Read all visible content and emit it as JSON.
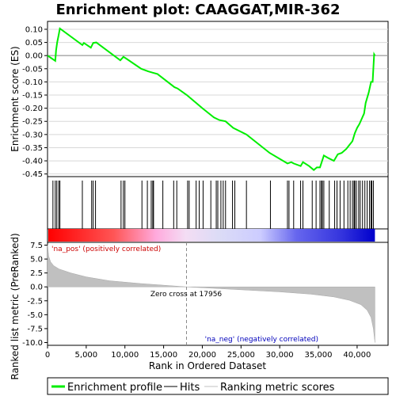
{
  "chart_data": {
    "type": "line",
    "title": "Enrichment plot: CAAGGAT,MIR-362",
    "es_panel": {
      "ylabel": "Enrichment score (ES)",
      "ylim": [
        -0.46,
        0.13
      ],
      "yticks": [
        0.1,
        0.05,
        0.0,
        -0.05,
        -0.1,
        -0.15,
        -0.2,
        -0.25,
        -0.3,
        -0.35,
        -0.4,
        -0.45
      ],
      "ytick_labels": [
        "0.10",
        "0.05",
        "0.00",
        "-0.05",
        "-0.10",
        "-0.15",
        "-0.20",
        "-0.25",
        "-0.30",
        "-0.35",
        "-0.40",
        "-0.45"
      ],
      "grid": true,
      "points": [
        [
          0,
          0.0
        ],
        [
          500,
          -0.01
        ],
        [
          1000,
          -0.02
        ],
        [
          1100,
          0.02
        ],
        [
          1250,
          0.05
        ],
        [
          1450,
          0.08
        ],
        [
          1600,
          0.103
        ],
        [
          4500,
          0.04
        ],
        [
          4700,
          0.048
        ],
        [
          5600,
          0.03
        ],
        [
          5900,
          0.048
        ],
        [
          6300,
          0.05
        ],
        [
          9400,
          -0.018
        ],
        [
          9800,
          -0.005
        ],
        [
          10100,
          -0.01
        ],
        [
          12100,
          -0.05
        ],
        [
          13000,
          -0.06
        ],
        [
          13600,
          -0.065
        ],
        [
          14200,
          -0.07
        ],
        [
          16400,
          -0.12
        ],
        [
          16800,
          -0.125
        ],
        [
          18000,
          -0.15
        ],
        [
          20000,
          -0.2
        ],
        [
          21500,
          -0.235
        ],
        [
          22200,
          -0.245
        ],
        [
          23000,
          -0.25
        ],
        [
          24000,
          -0.275
        ],
        [
          25700,
          -0.3
        ],
        [
          28700,
          -0.37
        ],
        [
          31000,
          -0.41
        ],
        [
          31500,
          -0.405
        ],
        [
          31800,
          -0.41
        ],
        [
          32700,
          -0.42
        ],
        [
          33000,
          -0.405
        ],
        [
          33800,
          -0.42
        ],
        [
          34400,
          -0.435
        ],
        [
          34800,
          -0.425
        ],
        [
          35200,
          -0.425
        ],
        [
          35700,
          -0.38
        ],
        [
          36300,
          -0.39
        ],
        [
          37000,
          -0.4
        ],
        [
          37500,
          -0.375
        ],
        [
          38000,
          -0.37
        ],
        [
          38600,
          -0.355
        ],
        [
          39000,
          -0.34
        ],
        [
          39400,
          -0.325
        ],
        [
          39700,
          -0.295
        ],
        [
          40000,
          -0.275
        ],
        [
          40300,
          -0.26
        ],
        [
          40600,
          -0.24
        ],
        [
          40900,
          -0.22
        ],
        [
          41100,
          -0.18
        ],
        [
          41500,
          -0.14
        ],
        [
          41800,
          -0.1
        ],
        [
          42000,
          -0.1
        ],
        [
          42200,
          0.005
        ],
        [
          42300,
          0.0
        ]
      ]
    },
    "hits_panel": {
      "hit_positions": [
        700,
        1000,
        1200,
        1450,
        1600,
        4500,
        5700,
        5900,
        6200,
        9500,
        9800,
        10000,
        12200,
        12900,
        13400,
        13600,
        13700,
        14900,
        16300,
        16700,
        18100,
        18300,
        19200,
        19600,
        20100,
        21100,
        21800,
        22000,
        22400,
        22700,
        23000,
        23900,
        24200,
        25700,
        28800,
        31000,
        31200,
        31800,
        32700,
        33000,
        34200,
        34700,
        35200,
        35400,
        35500,
        35700,
        36400,
        37100,
        37400,
        37800,
        38300,
        38800,
        39100,
        39400,
        39600,
        39700,
        39900,
        40200,
        40400,
        40700,
        41000,
        41300,
        41600,
        41800,
        41900,
        42100
      ]
    },
    "rank_panel": {
      "ylabel": "Ranked list metric (PreRanked)",
      "ylim": [
        -10.5,
        8.0
      ],
      "yticks": [
        7.5,
        5.0,
        2.5,
        0.0,
        -2.5,
        -5.0,
        -7.5,
        -10.0
      ],
      "ytick_labels": [
        "7.5",
        "5.0",
        "2.5",
        "0.0",
        "-2.5",
        "-5.0",
        "-7.5",
        "-10.0"
      ],
      "curve": [
        [
          0,
          7.6
        ],
        [
          150,
          5.5
        ],
        [
          400,
          4.5
        ],
        [
          800,
          3.8
        ],
        [
          1500,
          3.2
        ],
        [
          3000,
          2.5
        ],
        [
          5000,
          1.8
        ],
        [
          8000,
          1.1
        ],
        [
          12000,
          0.6
        ],
        [
          15000,
          0.3
        ],
        [
          17956,
          0.0
        ],
        [
          22000,
          -0.3
        ],
        [
          26000,
          -0.6
        ],
        [
          30000,
          -0.9
        ],
        [
          34000,
          -1.3
        ],
        [
          37000,
          -1.8
        ],
        [
          39000,
          -2.4
        ],
        [
          40500,
          -3.2
        ],
        [
          41300,
          -4.2
        ],
        [
          41800,
          -5.5
        ],
        [
          42100,
          -7.5
        ],
        [
          42300,
          -10.0
        ]
      ],
      "zero_cross_x": 17956,
      "zero_cross_label": "Zero cross at 17956",
      "pos_label": "'na_pos' (positively correlated)",
      "neg_label": "'na_neg' (negatively correlated)"
    },
    "xaxis": {
      "xlabel": "Rank in Ordered Dataset",
      "xlim": [
        0,
        44000
      ],
      "xticks": [
        0,
        5000,
        10000,
        15000,
        20000,
        25000,
        30000,
        35000,
        40000
      ],
      "xtick_labels": [
        "0",
        "5,000",
        "10,000",
        "15,000",
        "20,000",
        "25,000",
        "30,000",
        "35,000",
        "40,000"
      ],
      "data_end": 42300
    },
    "legend": {
      "placement": "bottom",
      "items": [
        "Enrichment profile",
        "Hits",
        "Ranking metric scores"
      ]
    },
    "colors": {
      "profile": "#00ee00",
      "hit": "#000000",
      "rank_fill": "#c0c0c0",
      "zero_line": "#888888",
      "pos_label": "#cc0000",
      "neg_label": "#0000bb"
    }
  }
}
